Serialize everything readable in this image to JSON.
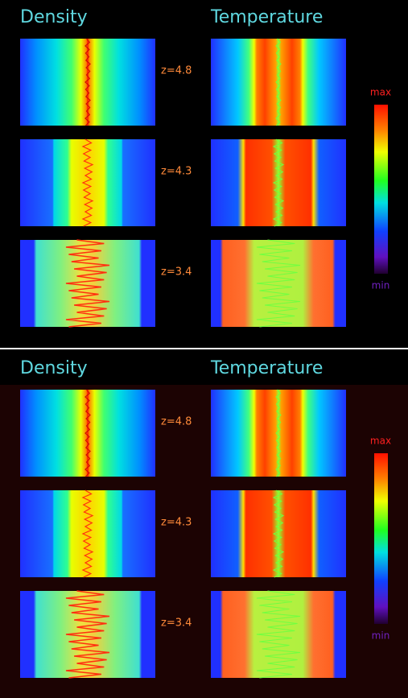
{
  "panels": [
    {
      "density_title": "Density",
      "temperature_title": "Temperature",
      "redshifts": [
        "z=4.8",
        "z=4.3",
        "z=3.4"
      ],
      "colorbar_max": "max",
      "colorbar_min": "min"
    },
    {
      "density_title": "Density",
      "temperature_title": "Temperature",
      "redshifts": [
        "z=4.8",
        "z=4.3",
        "z=3.4"
      ],
      "colorbar_max": "max",
      "colorbar_min": "min"
    }
  ]
}
